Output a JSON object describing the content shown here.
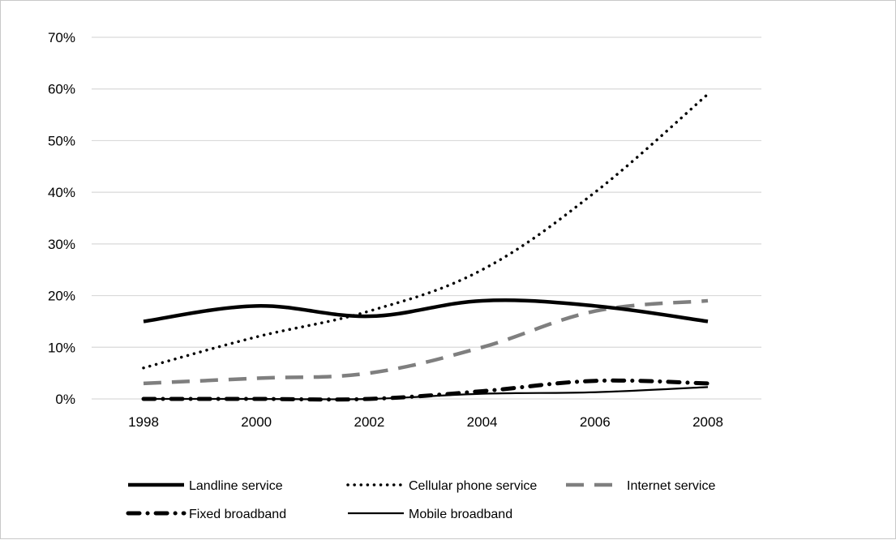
{
  "chart_data": {
    "type": "line",
    "title": "",
    "xlabel": "",
    "ylabel": "",
    "x": [
      "1998",
      "2000",
      "2002",
      "2004",
      "2006",
      "2008"
    ],
    "ylim": [
      0,
      70
    ],
    "yticks": [
      0,
      10,
      20,
      30,
      40,
      50,
      60,
      70
    ],
    "ytick_labels": [
      "0%",
      "10%",
      "20%",
      "30%",
      "40%",
      "50%",
      "60%",
      "70%"
    ],
    "grid": true,
    "legend": "bottom",
    "series": [
      {
        "name": "Landline service",
        "values": [
          15,
          18,
          16,
          19,
          18,
          15
        ],
        "color": "#000000",
        "style": "solid-thick"
      },
      {
        "name": "Cellular phone service",
        "values": [
          6,
          12,
          17,
          25,
          40,
          59
        ],
        "color": "#000000",
        "style": "dotted"
      },
      {
        "name": "Internet service",
        "values": [
          3,
          4,
          5,
          10,
          17,
          19
        ],
        "color": "#7f7f7f",
        "style": "dashed"
      },
      {
        "name": "Fixed broadband",
        "values": [
          0,
          0,
          0,
          1.5,
          3.5,
          3
        ],
        "color": "#000000",
        "style": "dash-dot"
      },
      {
        "name": "Mobile broadband",
        "values": [
          0,
          0,
          0,
          1,
          1.3,
          2.3
        ],
        "color": "#000000",
        "style": "solid-thin"
      }
    ]
  }
}
